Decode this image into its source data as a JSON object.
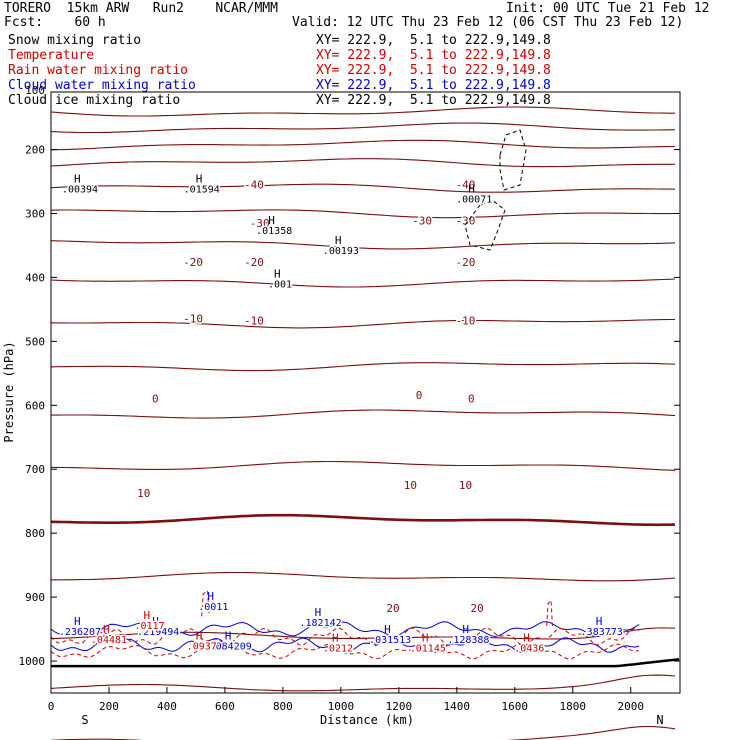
{
  "header": {
    "line1_left": "TORERO  15km ARW   Run2    NCAR/MMM",
    "line1_right": "Init: 00 UTC Tue 21 Feb 12",
    "line2_left": "Fcst:    60 h",
    "line2_right": "Valid: 12 UTC Thu 23 Feb 12 (06 CST Thu 23 Feb 12)"
  },
  "legend": [
    {
      "name": "Snow mixing ratio",
      "xy": "XY= 222.9,  5.1 to 222.9,149.8",
      "color": "#000000"
    },
    {
      "name": "Temperature",
      "xy": "XY= 222.9,  5.1 to 222.9,149.8",
      "color": "#cc0000"
    },
    {
      "name": "Rain water mixing ratio",
      "xy": "XY= 222.9,  5.1 to 222.9,149.8",
      "color": "#cc0000"
    },
    {
      "name": "Cloud water mixing ratio",
      "xy": "XY= 222.9,  5.1 to 222.9,149.8",
      "color": "#0000cc"
    },
    {
      "name": "Cloud ice mixing ratio",
      "xy": "XY= 222.9,  5.1 to 222.9,149.8",
      "color": "#000000"
    }
  ],
  "chart_data": {
    "type": "contour cross-section",
    "xlabel": "Distance (km)",
    "ylabel": "Pressure (hPa)",
    "xlim": [
      0,
      2170
    ],
    "ylim": [
      1050,
      110
    ],
    "x_ticks": [
      0,
      200,
      400,
      600,
      800,
      1000,
      1200,
      1400,
      1600,
      1800,
      2000
    ],
    "y_ticks": [
      200,
      300,
      400,
      500,
      600,
      700,
      800,
      900,
      1000
    ],
    "y_tick_partial": "100",
    "start_label": "S",
    "end_label": "N",
    "temperature_contours_c": [
      -60,
      -55,
      -50,
      -45,
      -40,
      -35,
      -30,
      -25,
      -20,
      -15,
      -10,
      -5,
      0,
      5,
      10,
      15,
      20
    ],
    "contour_labels": [
      {
        "text": "-40",
        "x": 700,
        "p": 255
      },
      {
        "text": "-40",
        "x": 1430,
        "p": 255
      },
      {
        "text": "-30",
        "x": 720,
        "p": 315
      },
      {
        "text": "-30",
        "x": 1280,
        "p": 311
      },
      {
        "text": "-30",
        "x": 1430,
        "p": 311
      },
      {
        "text": "-20",
        "x": 490,
        "p": 376
      },
      {
        "text": "-20",
        "x": 700,
        "p": 376
      },
      {
        "text": "-20",
        "x": 1430,
        "p": 376
      },
      {
        "text": "-10",
        "x": 490,
        "p": 464
      },
      {
        "text": "-10",
        "x": 700,
        "p": 467
      },
      {
        "text": "-10",
        "x": 1430,
        "p": 467
      },
      {
        "text": "0",
        "x": 360,
        "p": 589
      },
      {
        "text": "0",
        "x": 1270,
        "p": 584
      },
      {
        "text": "0",
        "x": 1450,
        "p": 589
      },
      {
        "text": "10",
        "x": 320,
        "p": 737
      },
      {
        "text": "10",
        "x": 1240,
        "p": 725
      },
      {
        "text": "10",
        "x": 1430,
        "p": 725
      },
      {
        "text": "20",
        "x": 1180,
        "p": 917
      },
      {
        "text": "20",
        "x": 1470,
        "p": 917
      }
    ],
    "maxima": [
      {
        "text": ".00394",
        "x": 100,
        "p": 267,
        "color": "#000000"
      },
      {
        "text": ".01594",
        "x": 520,
        "p": 267,
        "color": "#000000"
      },
      {
        "text": ".01358",
        "x": 770,
        "p": 332,
        "color": "#000000"
      },
      {
        "text": ".00193",
        "x": 1000,
        "p": 363,
        "color": "#000000"
      },
      {
        "text": ".00071",
        "x": 1460,
        "p": 283,
        "color": "#000000"
      },
      {
        "text": ".001",
        "x": 790,
        "p": 416,
        "color": "#000000"
      },
      {
        "text": ".0011",
        "x": 560,
        "p": 920,
        "color": "#0000cc"
      },
      {
        "text": ".236207",
        "x": 100,
        "p": 959,
        "color": "#0000cc"
      },
      {
        "text": ".219494",
        "x": 370,
        "p": 959,
        "color": "#0000cc"
      },
      {
        "text": ".182142",
        "x": 930,
        "p": 945,
        "color": "#0000cc"
      },
      {
        "text": ".031513",
        "x": 1170,
        "p": 972,
        "color": "#0000cc"
      },
      {
        "text": ".128388",
        "x": 1440,
        "p": 972,
        "color": "#0000cc"
      },
      {
        "text": ".383773",
        "x": 1900,
        "p": 959,
        "color": "#0000cc"
      },
      {
        "text": ".084209",
        "x": 620,
        "p": 982,
        "color": "#0000cc"
      },
      {
        "text": ".04481",
        "x": 200,
        "p": 972,
        "color": "#cc0000"
      },
      {
        "text": ".0937",
        "x": 520,
        "p": 982,
        "color": "#cc0000"
      },
      {
        "text": ".0212",
        "x": 990,
        "p": 985,
        "color": "#cc0000"
      },
      {
        "text": ".01145",
        "x": 1300,
        "p": 985,
        "color": "#cc0000"
      },
      {
        "text": ".0436",
        "x": 1650,
        "p": 985,
        "color": "#cc0000"
      },
      {
        "text": ".0117",
        "x": 340,
        "p": 950,
        "color": "#cc0000"
      }
    ]
  }
}
